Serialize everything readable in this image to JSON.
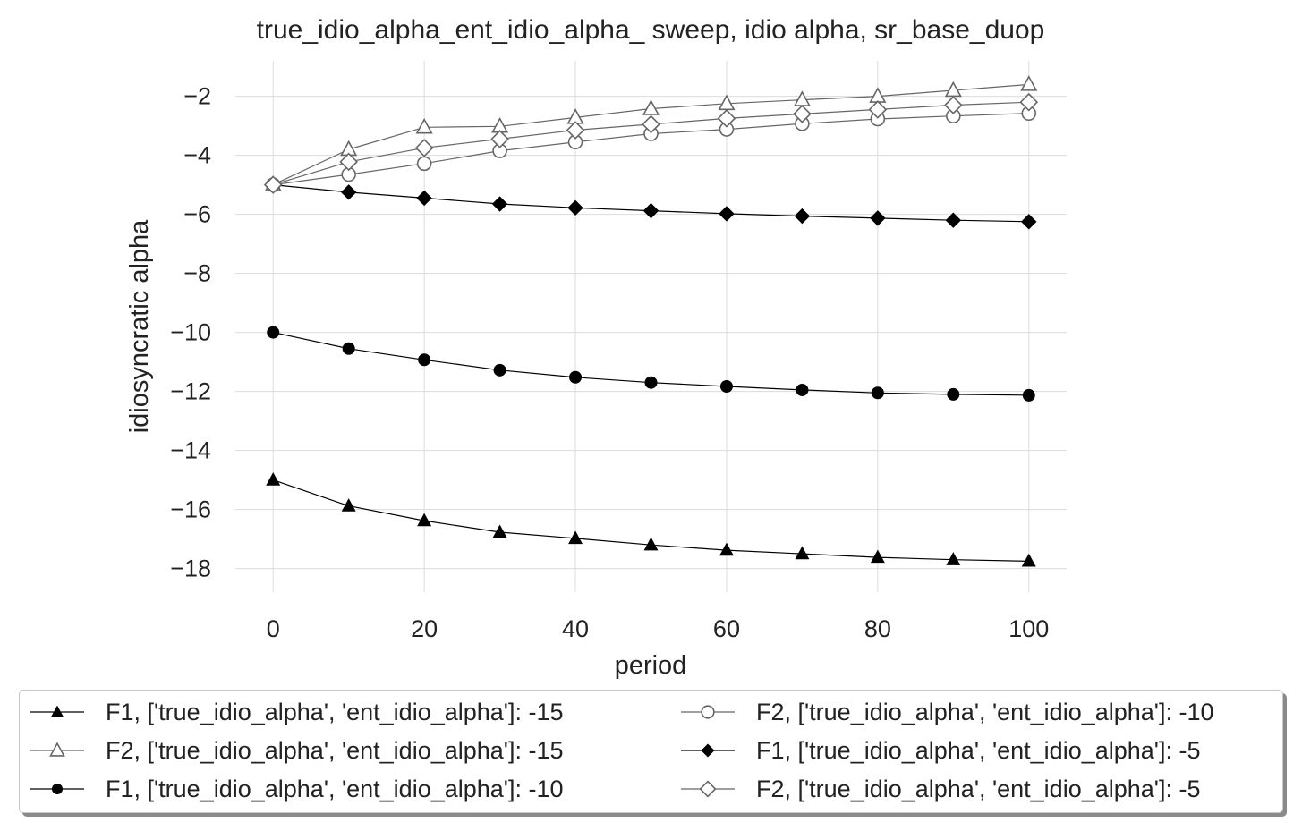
{
  "chart_data": {
    "type": "line",
    "title": "true_idio_alpha_ent_idio_alpha_ sweep, idio alpha, sr_base_duop",
    "xlabel": "period",
    "ylabel": "idiosyncratic alpha",
    "xlim": [
      -5,
      105
    ],
    "ylim": [
      -18.8,
      -0.8
    ],
    "xticks": [
      0,
      20,
      40,
      60,
      80,
      100
    ],
    "yticks": [
      -18,
      -16,
      -14,
      -12,
      -10,
      -8,
      -6,
      -4,
      -2
    ],
    "xtick_labels": [
      "0",
      "20",
      "40",
      "60",
      "80",
      "100"
    ],
    "ytick_labels": [
      "−18",
      "−16",
      "−14",
      "−12",
      "−10",
      "−8",
      "−6",
      "−4",
      "−2"
    ],
    "grid": true,
    "legend_position": "bottom",
    "marker_x": [
      0,
      10,
      20,
      30,
      40,
      50,
      60,
      70,
      80,
      90,
      100
    ],
    "series": [
      {
        "name": "F1, ['true_idio_alpha', 'ent_idio_alpha']: -15",
        "marker": "triangle-filled",
        "color": "#000000",
        "values": [
          -15.0,
          -15.88,
          -16.38,
          -16.77,
          -16.98,
          -17.2,
          -17.38,
          -17.5,
          -17.62,
          -17.7,
          -17.75
        ]
      },
      {
        "name": "F2, ['true_idio_alpha', 'ent_idio_alpha']: -15",
        "marker": "triangle-open",
        "color": "#666666",
        "values": [
          -5.0,
          -3.8,
          -3.05,
          -3.02,
          -2.72,
          -2.42,
          -2.25,
          -2.12,
          -2.0,
          -1.8,
          -1.6
        ]
      },
      {
        "name": "F1, ['true_idio_alpha', 'ent_idio_alpha']: -10",
        "marker": "circle-filled",
        "color": "#000000",
        "values": [
          -10.0,
          -10.55,
          -10.93,
          -11.28,
          -11.52,
          -11.7,
          -11.83,
          -11.95,
          -12.05,
          -12.1,
          -12.13
        ]
      },
      {
        "name": "F2, ['true_idio_alpha', 'ent_idio_alpha']: -10",
        "marker": "circle-open",
        "color": "#666666",
        "values": [
          -5.0,
          -4.65,
          -4.28,
          -3.85,
          -3.55,
          -3.27,
          -3.12,
          -2.93,
          -2.77,
          -2.67,
          -2.58
        ]
      },
      {
        "name": "F1, ['true_idio_alpha', 'ent_idio_alpha']: -5",
        "marker": "diamond-filled",
        "color": "#000000",
        "values": [
          -5.0,
          -5.25,
          -5.45,
          -5.65,
          -5.78,
          -5.88,
          -5.98,
          -6.06,
          -6.13,
          -6.2,
          -6.25
        ]
      },
      {
        "name": "F2, ['true_idio_alpha', 'ent_idio_alpha']: -5",
        "marker": "diamond-open",
        "color": "#666666",
        "values": [
          -5.0,
          -4.22,
          -3.75,
          -3.45,
          -3.15,
          -2.95,
          -2.75,
          -2.6,
          -2.45,
          -2.3,
          -2.2
        ]
      }
    ],
    "legend_order": [
      0,
      3,
      1,
      4,
      2,
      5
    ]
  }
}
